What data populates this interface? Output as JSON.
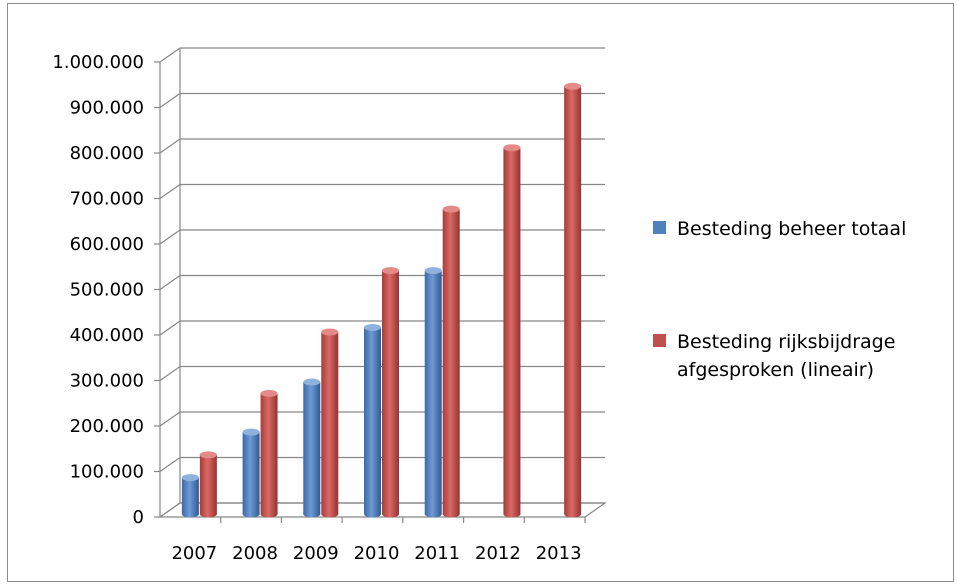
{
  "chart_data": {
    "type": "bar",
    "title": "",
    "xlabel": "",
    "ylabel": "",
    "categories": [
      "2007",
      "2008",
      "2009",
      "2010",
      "2011",
      "2012",
      "2013"
    ],
    "series": [
      {
        "name": "Besteding beheer totaal",
        "color": "#4f81bd",
        "values": [
          80000,
          180000,
          290000,
          410000,
          535000,
          null,
          null
        ]
      },
      {
        "name": "Besteding rijksbijdrage afgesproken (lineair)",
        "color": "#c0504d",
        "values": [
          130000,
          265000,
          400000,
          535000,
          670000,
          805000,
          940000
        ]
      }
    ],
    "ylim": [
      0,
      1000000
    ],
    "yticks": [
      0,
      100000,
      200000,
      300000,
      400000,
      500000,
      600000,
      700000,
      800000,
      900000,
      1000000
    ],
    "ytick_labels": [
      "0",
      "100.000",
      "200.000",
      "300.000",
      "400.000",
      "500.000",
      "600.000",
      "700.000",
      "800.000",
      "900.000",
      "1.000.000"
    ],
    "grid": true,
    "legend_position": "right",
    "legend": {
      "entries": [
        {
          "lines": [
            "Besteding beheer totaal"
          ],
          "color": "#4f81bd"
        },
        {
          "lines": [
            "Besteding rijksbijdrage",
            "afgesproken (lineair)"
          ],
          "color": "#c0504d"
        }
      ]
    }
  }
}
